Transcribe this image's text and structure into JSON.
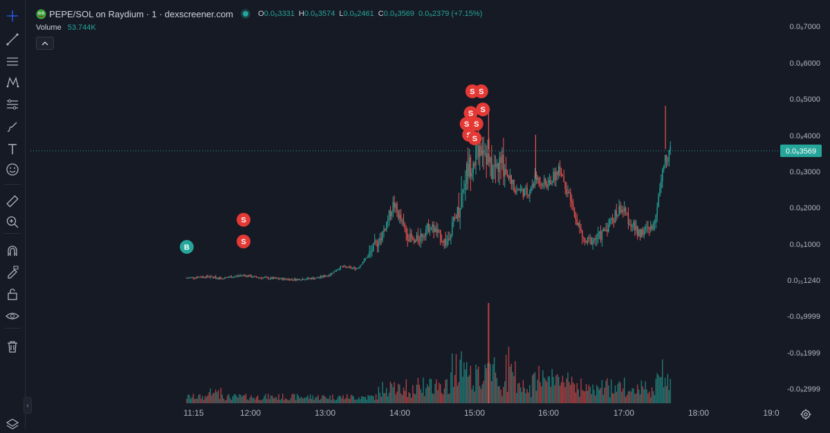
{
  "header": {
    "title": "PEPE/SOL on Raydium · 1 · dexscreener.com",
    "ohlc": [
      {
        "key": "O",
        "value": "0.0₈3331"
      },
      {
        "key": "H",
        "value": "0.0₈3574"
      },
      {
        "key": "L",
        "value": "0.0₈2461"
      },
      {
        "key": "C",
        "value": "0.0₈3569"
      }
    ],
    "change": "0.0₈2379 (+7.15%)"
  },
  "volume_legend": {
    "label": "Volume",
    "value": "53.744K"
  },
  "toolbar": {
    "tools": [
      "crosshair-icon",
      "trend-line-icon",
      "horizontal-lines-icon",
      "pattern-icon",
      "measure-lines-icon",
      "brush-icon",
      "text-icon",
      "emoji-icon",
      "ruler-icon",
      "zoom-in-icon",
      "magnet-icon",
      "lock-drawing-icon",
      "lock-icon",
      "eye-icon",
      "trash-icon",
      "layers-icon"
    ]
  },
  "chart_data": {
    "type": "candlestick",
    "y_axis_labels": [
      "0.0₈7000",
      "0.0₈6000",
      "0.0₈5000",
      "0.0₈4000",
      "0.0₈3000",
      "0.0₈2000",
      "0.0₈1000",
      "0.0₂₁1240",
      "-0.0₈9999",
      "-0.0₈1999",
      "-0.0₈2999"
    ],
    "x_axis_labels": [
      "11:15",
      "12:00",
      "13:00",
      "14:00",
      "15:00",
      "16:00",
      "17:00",
      "18:00",
      "19:0"
    ],
    "last_price_label": "0.0₈3569",
    "colors": {
      "up": "#26a69a",
      "down": "#ef5350",
      "buy_marker": "#26a69a",
      "sell_marker": "#e53935"
    },
    "price_path_hours": [
      11.25,
      11.45,
      11.7,
      11.95,
      12.1,
      12.35,
      12.6,
      12.85,
      13.0,
      13.15,
      13.35,
      13.5,
      13.65,
      13.8,
      13.95,
      14.05,
      14.25,
      14.45,
      14.6,
      14.7,
      14.8,
      14.9,
      15.0,
      15.15,
      15.3,
      15.45,
      15.55,
      15.7,
      15.85,
      16.0,
      16.15,
      16.35,
      16.6,
      16.8,
      17.0,
      17.12,
      17.22
    ],
    "price_path_values": [
      0.04,
      0.08,
      0.04,
      0.12,
      0.06,
      0.02,
      0.0,
      0.04,
      0.12,
      0.35,
      0.3,
      0.7,
      1.2,
      2.1,
      1.3,
      1.0,
      1.5,
      1.0,
      2.0,
      3.0,
      3.4,
      3.8,
      3.0,
      3.2,
      2.5,
      2.4,
      2.8,
      2.6,
      3.1,
      2.0,
      1.0,
      1.2,
      2.0,
      1.3,
      1.4,
      3.2,
      3.569
    ],
    "buy_markers": [
      {
        "label": "B",
        "hour": 11.25,
        "value": 0.9
      }
    ],
    "sell_markers": [
      {
        "label": "S",
        "hour": 11.95,
        "value": 1.65
      },
      {
        "label": "S",
        "hour": 11.95,
        "value": 1.05
      },
      {
        "label": "S",
        "hour": 14.77,
        "value": 5.2
      },
      {
        "label": "S",
        "hour": 14.88,
        "value": 5.2
      },
      {
        "label": "S",
        "hour": 14.75,
        "value": 4.6
      },
      {
        "label": "S",
        "hour": 14.9,
        "value": 4.7
      },
      {
        "label": "S",
        "hour": 14.7,
        "value": 4.3
      },
      {
        "label": "S",
        "hour": 14.82,
        "value": 4.3
      },
      {
        "label": "S",
        "hour": 14.73,
        "value": 4.0
      },
      {
        "label": "S",
        "hour": 14.8,
        "value": 3.9
      }
    ]
  }
}
